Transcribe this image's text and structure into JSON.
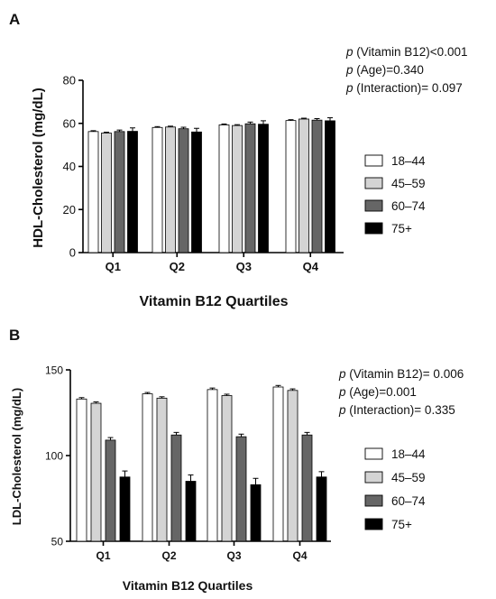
{
  "chart_data": [
    {
      "panel_label": "A",
      "type": "bar",
      "title": "",
      "xlabel": "Vitamin B12 Quartiles",
      "ylabel": "HDL-Cholesterol (mg/dL)",
      "ylim": [
        0,
        80
      ],
      "yticks": [
        0,
        20,
        40,
        60,
        80
      ],
      "categories": [
        "Q1",
        "Q2",
        "Q3",
        "Q4"
      ],
      "series": [
        {
          "name": "18–44",
          "color": "#ffffff",
          "values": [
            56.2,
            58.1,
            59.3,
            61.3
          ],
          "errors": [
            0.4,
            0.4,
            0.4,
            0.4
          ]
        },
        {
          "name": "45–59",
          "color": "#d4d4d4",
          "values": [
            55.5,
            58.3,
            59.0,
            62.0
          ],
          "errors": [
            0.4,
            0.4,
            0.4,
            0.4
          ]
        },
        {
          "name": "60–74",
          "color": "#666666",
          "values": [
            56.2,
            57.5,
            59.8,
            61.5
          ],
          "errors": [
            0.7,
            0.7,
            0.8,
            0.7
          ]
        },
        {
          "name": "75+",
          "color": "#000000",
          "values": [
            56.3,
            56.0,
            59.6,
            61.2
          ],
          "errors": [
            1.6,
            1.7,
            1.6,
            1.4
          ]
        }
      ],
      "legend_position": "right",
      "stats": [
        {
          "p": "p",
          "text": " (Vitamin B12)<0.001"
        },
        {
          "p": "p",
          "text": " (Age)=0.340"
        },
        {
          "p": "p",
          "text": " (Interaction)= 0.097"
        }
      ]
    },
    {
      "panel_label": "B",
      "type": "bar",
      "title": "",
      "xlabel": "Vitamin B12 Quartiles",
      "ylabel": "LDL-Cholesterol (mg/dL)",
      "ylim": [
        50,
        150
      ],
      "yticks": [
        50,
        100,
        150
      ],
      "categories": [
        "Q1",
        "Q2",
        "Q3",
        "Q4"
      ],
      "series": [
        {
          "name": "18–44",
          "color": "#ffffff",
          "values": [
            133,
            136,
            138.5,
            140
          ],
          "errors": [
            0.8,
            0.8,
            0.9,
            0.9
          ]
        },
        {
          "name": "45–59",
          "color": "#d4d4d4",
          "values": [
            130.5,
            133.5,
            135,
            138
          ],
          "errors": [
            0.8,
            0.8,
            0.8,
            0.9
          ]
        },
        {
          "name": "60–74",
          "color": "#666666",
          "values": [
            109,
            112,
            111,
            112
          ],
          "errors": [
            1.5,
            1.5,
            1.5,
            1.5
          ]
        },
        {
          "name": "75+",
          "color": "#000000",
          "values": [
            87.5,
            85,
            83,
            87.5
          ],
          "errors": [
            3.5,
            3.7,
            3.7,
            3.1
          ]
        }
      ],
      "legend_position": "right",
      "stats": [
        {
          "p": "p",
          "text": " (Vitamin B12)= 0.006"
        },
        {
          "p": "p",
          "text": " (Age)=0.001"
        },
        {
          "p": "p",
          "text": " (Interaction)= 0.335"
        }
      ]
    }
  ]
}
